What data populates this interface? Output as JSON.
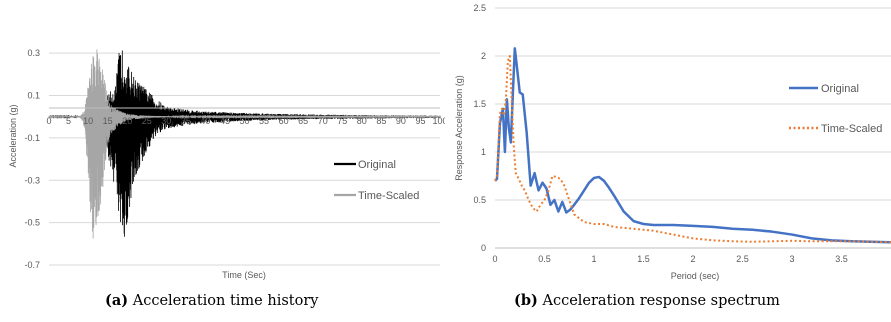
{
  "captions": {
    "a_tag": "(a)",
    "a_text": "Acceleration time history",
    "b_tag": "(b)",
    "b_text": "Acceleration response spectrum"
  },
  "chart_data": [
    {
      "type": "line",
      "xlabel": "Time (Sec)",
      "ylabel": "Acceleration (g)",
      "xlim": [
        0,
        100
      ],
      "ylim": [
        -0.7,
        0.4
      ],
      "x_ticks": [
        0,
        5,
        10,
        15,
        20,
        25,
        30,
        35,
        40,
        45,
        50,
        55,
        60,
        65,
        70,
        75,
        80,
        85,
        90,
        95,
        100
      ],
      "x_tick_labels": [
        "0",
        "5",
        "10",
        "15",
        "20",
        "25",
        "30",
        "35",
        "40",
        "45",
        "50",
        "55",
        "60",
        "65",
        "70",
        "75",
        "80",
        "85",
        "90",
        "95",
        "100"
      ],
      "y_ticks": [
        -0.7,
        -0.5,
        -0.3,
        -0.1,
        0.1,
        0.3
      ],
      "y_tick_labels": [
        "-0.7",
        "-0.5",
        "-0.3",
        "-0.1",
        "0.1",
        "0.3"
      ],
      "grid": "horizontal",
      "legend_position": "right",
      "series": [
        {
          "name": "Original",
          "color": "#000000",
          "envelope": {
            "t": [
              0,
              10,
              12,
              14,
              17,
              18,
              19,
              20,
              21,
              22,
              25,
              27,
              30,
              35,
              40,
              50,
              60,
              70,
              80,
              90,
              100
            ],
            "pos": [
              0.002,
              0.003,
              0.03,
              0.08,
              0.15,
              0.32,
              0.32,
              0.25,
              0.22,
              0.18,
              0.13,
              0.09,
              0.05,
              0.035,
              0.025,
              0.018,
              0.013,
              0.01,
              0.008,
              0.006,
              0.005
            ],
            "neg": [
              0.002,
              0.003,
              0.05,
              0.12,
              0.35,
              0.55,
              0.7,
              0.5,
              0.4,
              0.3,
              0.17,
              0.1,
              0.06,
              0.04,
              0.03,
              0.02,
              0.014,
              0.011,
              0.009,
              0.007,
              0.006
            ]
          }
        },
        {
          "name": "Time-Scaled",
          "color": "#a6a6a6",
          "envelope": {
            "t": [
              0,
              8,
              9,
              10,
              11,
              12,
              13,
              14,
              15,
              16,
              18,
              20,
              22,
              25,
              30,
              35,
              100
            ],
            "pos": [
              0.002,
              0.003,
              0.03,
              0.15,
              0.3,
              0.33,
              0.3,
              0.2,
              0.1,
              0.05,
              0.03,
              0.015,
              0.01,
              0.005,
              0.003,
              0.002,
              0.001
            ],
            "neg": [
              0.002,
              0.003,
              0.05,
              0.3,
              0.7,
              0.55,
              0.45,
              0.3,
              0.15,
              0.08,
              0.04,
              0.02,
              0.012,
              0.006,
              0.003,
              0.002,
              0.001
            ]
          }
        }
      ]
    },
    {
      "type": "line",
      "xlabel": "Period (sec)",
      "ylabel": "Response Acceleration (g)",
      "xlim": [
        0,
        4
      ],
      "ylim": [
        0,
        2.5
      ],
      "x_ticks": [
        0,
        0.5,
        1,
        1.5,
        2,
        2.5,
        3,
        3.5
      ],
      "x_tick_labels": [
        "0",
        "0.5",
        "1",
        "1.5",
        "2",
        "2.5",
        "3",
        "3.5"
      ],
      "y_ticks": [
        0,
        0.5,
        1,
        1.5,
        2,
        2.5
      ],
      "y_tick_labels": [
        "0",
        "0.5",
        "1",
        "1.5",
        "2",
        "2.5"
      ],
      "grid": "horizontal",
      "legend_position": "right",
      "series": [
        {
          "name": "Original",
          "color": "#4472c4",
          "style": "solid",
          "x": [
            0,
            0.02,
            0.05,
            0.08,
            0.1,
            0.12,
            0.14,
            0.16,
            0.18,
            0.2,
            0.22,
            0.25,
            0.28,
            0.32,
            0.36,
            0.4,
            0.44,
            0.48,
            0.52,
            0.56,
            0.6,
            0.64,
            0.68,
            0.72,
            0.76,
            0.8,
            0.85,
            0.9,
            0.95,
            1.0,
            1.05,
            1.1,
            1.15,
            1.2,
            1.3,
            1.4,
            1.5,
            1.6,
            1.8,
            2.0,
            2.2,
            2.4,
            2.6,
            2.8,
            3.0,
            3.2,
            3.4,
            3.6,
            3.8,
            4.0
          ],
          "y": [
            0.7,
            0.72,
            1.3,
            1.45,
            1.0,
            1.55,
            1.25,
            1.1,
            1.6,
            2.08,
            1.9,
            1.62,
            1.6,
            1.2,
            0.65,
            0.78,
            0.6,
            0.68,
            0.62,
            0.45,
            0.5,
            0.38,
            0.48,
            0.37,
            0.4,
            0.45,
            0.52,
            0.6,
            0.68,
            0.73,
            0.74,
            0.7,
            0.63,
            0.55,
            0.38,
            0.28,
            0.25,
            0.24,
            0.24,
            0.23,
            0.22,
            0.2,
            0.19,
            0.17,
            0.14,
            0.1,
            0.08,
            0.07,
            0.065,
            0.06
          ]
        },
        {
          "name": "Time-Scaled",
          "color": "#ed7d31",
          "style": "dotted",
          "x": [
            0,
            0.02,
            0.05,
            0.07,
            0.09,
            0.11,
            0.13,
            0.15,
            0.17,
            0.19,
            0.21,
            0.24,
            0.27,
            0.3,
            0.34,
            0.38,
            0.42,
            0.46,
            0.5,
            0.54,
            0.58,
            0.62,
            0.66,
            0.7,
            0.75,
            0.8,
            0.9,
            1.0,
            1.1,
            1.2,
            1.4,
            1.6,
            1.8,
            2.0,
            2.2,
            2.4,
            2.6,
            2.8,
            3.0,
            3.2,
            3.4,
            3.6,
            3.8,
            4.0
          ],
          "y": [
            0.7,
            0.75,
            1.4,
            1.45,
            1.38,
            1.55,
            1.95,
            2.0,
            1.5,
            1.05,
            0.78,
            0.72,
            0.65,
            0.6,
            0.5,
            0.42,
            0.38,
            0.45,
            0.5,
            0.6,
            0.75,
            0.74,
            0.72,
            0.65,
            0.5,
            0.35,
            0.27,
            0.25,
            0.25,
            0.22,
            0.2,
            0.18,
            0.14,
            0.1,
            0.08,
            0.07,
            0.065,
            0.07,
            0.075,
            0.07,
            0.07,
            0.07,
            0.065,
            0.06
          ]
        }
      ]
    }
  ]
}
